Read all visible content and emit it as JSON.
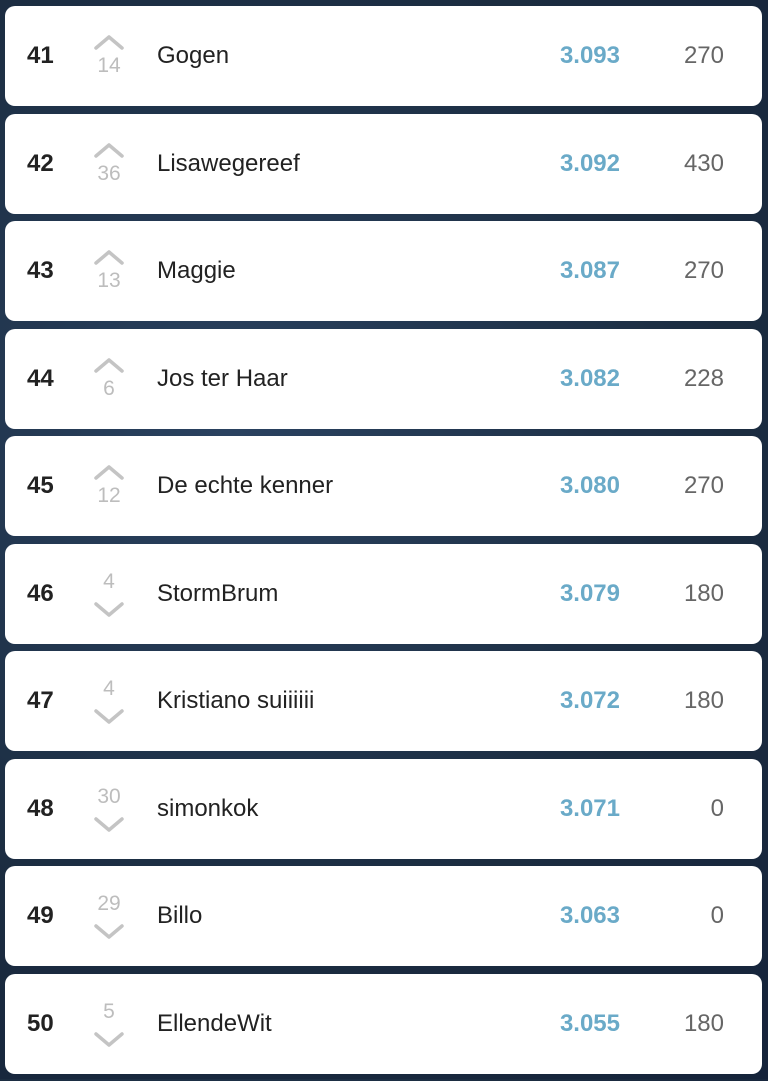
{
  "colors": {
    "score": "#6aaac8",
    "movement": "#bdbdbd",
    "points": "#666666"
  },
  "rows": [
    {
      "rank": "41",
      "direction": "up",
      "change": "14",
      "name": "Gogen",
      "score": "3.093",
      "points": "270"
    },
    {
      "rank": "42",
      "direction": "up",
      "change": "36",
      "name": "Lisawegereef",
      "score": "3.092",
      "points": "430"
    },
    {
      "rank": "43",
      "direction": "up",
      "change": "13",
      "name": "Maggie",
      "score": "3.087",
      "points": "270"
    },
    {
      "rank": "44",
      "direction": "up",
      "change": "6",
      "name": "Jos ter Haar",
      "score": "3.082",
      "points": "228"
    },
    {
      "rank": "45",
      "direction": "up",
      "change": "12",
      "name": "De echte kenner",
      "score": "3.080",
      "points": "270"
    },
    {
      "rank": "46",
      "direction": "down",
      "change": "4",
      "name": "StormBrum",
      "score": "3.079",
      "points": "180"
    },
    {
      "rank": "47",
      "direction": "down",
      "change": "4",
      "name": "Kristiano suiiiiii",
      "score": "3.072",
      "points": "180"
    },
    {
      "rank": "48",
      "direction": "down",
      "change": "30",
      "name": "simonkok",
      "score": "3.071",
      "points": "0"
    },
    {
      "rank": "49",
      "direction": "down",
      "change": "29",
      "name": "Billo",
      "score": "3.063",
      "points": "0"
    },
    {
      "rank": "50",
      "direction": "down",
      "change": "5",
      "name": "EllendeWit",
      "score": "3.055",
      "points": "180"
    }
  ]
}
